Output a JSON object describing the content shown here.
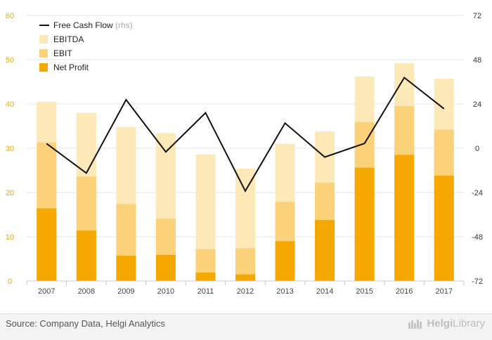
{
  "chart_data": {
    "type": "bar",
    "categories": [
      "2007",
      "2008",
      "2009",
      "2010",
      "2011",
      "2012",
      "2013",
      "2014",
      "2015",
      "2016",
      "2017"
    ],
    "series": [
      {
        "name": "EBITDA",
        "kind": "bar",
        "axis": "left",
        "color": "#fde8b8",
        "values": [
          40.5,
          38.0,
          34.8,
          33.4,
          28.6,
          25.4,
          31.0,
          33.8,
          46.2,
          49.2,
          45.7
        ]
      },
      {
        "name": "EBIT",
        "kind": "bar",
        "axis": "left",
        "color": "#fbd27a",
        "values": [
          31.3,
          23.6,
          17.4,
          14.1,
          7.2,
          7.4,
          17.9,
          22.2,
          35.9,
          39.5,
          34.2
        ]
      },
      {
        "name": "Net Profit",
        "kind": "bar",
        "axis": "left",
        "color": "#f5a800",
        "values": [
          16.4,
          11.4,
          5.7,
          5.9,
          1.9,
          1.5,
          9.0,
          13.8,
          25.6,
          28.5,
          23.8
        ]
      },
      {
        "name": "Free Cash Flow",
        "name_suffix": "(rhs)",
        "kind": "line",
        "axis": "right",
        "color": "#111111",
        "values": [
          2.5,
          -13.5,
          26.3,
          -2.0,
          19.2,
          -23.2,
          13.6,
          -4.8,
          2.6,
          38.3,
          21.4
        ]
      }
    ],
    "ylim_left": [
      0,
      60
    ],
    "yticks_left": [
      "0",
      "10",
      "20",
      "30",
      "40",
      "50",
      "60"
    ],
    "ylim_right": [
      -72,
      72
    ],
    "yticks_right": [
      "-72",
      "-48",
      "-24",
      "0",
      "24",
      "48",
      "72"
    ],
    "grid": true,
    "legend_position": "top-left",
    "left_axis_color": "#f0a800"
  },
  "footer": {
    "source": "Source: Company Data, Helgi Analytics",
    "brand_prefix": "Helgi",
    "brand_suffix": "Library"
  }
}
